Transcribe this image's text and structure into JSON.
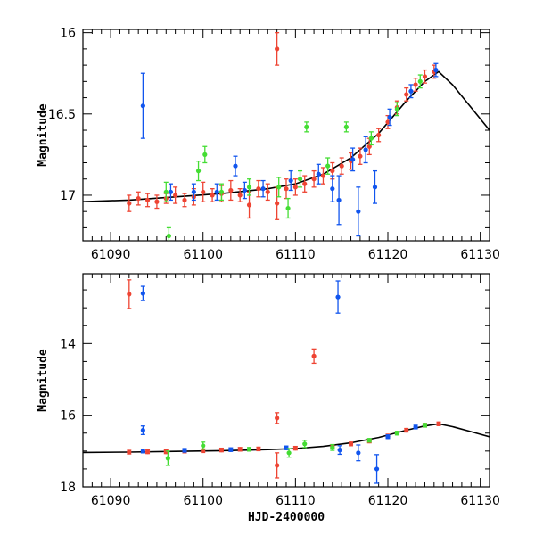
{
  "colors": {
    "red": "#ee4433",
    "blue": "#1155ee",
    "green": "#44dd33",
    "model": "#000000"
  },
  "chart_data": [
    {
      "type": "scatter",
      "ylabel": "Magnitude",
      "xlabel": "",
      "xlim": [
        61087,
        61131
      ],
      "ylim": [
        17.28,
        15.98
      ],
      "x_ticks": [
        61090,
        61100,
        61110,
        61120,
        61130
      ],
      "y_ticks": [
        16,
        16.5,
        17
      ],
      "y_tick_labels": [
        "16",
        "16.5",
        "17"
      ],
      "model_curve": [
        [
          61087,
          17.04
        ],
        [
          61092,
          17.03
        ],
        [
          61097,
          17.01
        ],
        [
          61102,
          16.99
        ],
        [
          61107,
          16.96
        ],
        [
          61110,
          16.93
        ],
        [
          61113,
          16.87
        ],
        [
          61116,
          16.77
        ],
        [
          61119,
          16.62
        ],
        [
          61122,
          16.42
        ],
        [
          61124,
          16.3
        ],
        [
          61125.5,
          16.24
        ],
        [
          61127,
          16.32
        ],
        [
          61129,
          16.46
        ],
        [
          61131,
          16.6
        ]
      ],
      "series": [
        {
          "name": "red",
          "points": [
            [
              61092,
              17.05,
              0.05
            ],
            [
              61093,
              17.02,
              0.04
            ],
            [
              61094,
              17.03,
              0.04
            ],
            [
              61095,
              17.04,
              0.04
            ],
            [
              61096,
              17.02,
              0.03
            ],
            [
              61097,
              17.0,
              0.05
            ],
            [
              61098,
              17.03,
              0.04
            ],
            [
              61099,
              17.01,
              0.05
            ],
            [
              61100,
              16.98,
              0.06
            ],
            [
              61101,
              17.0,
              0.04
            ],
            [
              61102,
              16.99,
              0.05
            ],
            [
              61103,
              16.97,
              0.06
            ],
            [
              61104,
              17.0,
              0.04
            ],
            [
              61105,
              17.06,
              0.08
            ],
            [
              61106,
              16.96,
              0.05
            ],
            [
              61107,
              16.98,
              0.05
            ],
            [
              61108,
              16.1,
              0.1
            ],
            [
              61108,
              17.05,
              0.1
            ],
            [
              61109,
              16.96,
              0.06
            ],
            [
              61110,
              16.95,
              0.05
            ],
            [
              61111,
              16.93,
              0.05
            ],
            [
              61112,
              16.9,
              0.05
            ],
            [
              61113,
              16.88,
              0.05
            ],
            [
              61114,
              16.85,
              0.05
            ],
            [
              61115,
              16.82,
              0.05
            ],
            [
              61116,
              16.79,
              0.05
            ],
            [
              61117,
              16.76,
              0.05
            ],
            [
              61118,
              16.7,
              0.05
            ],
            [
              61119,
              16.63,
              0.04
            ],
            [
              61120,
              16.55,
              0.04
            ],
            [
              61121,
              16.46,
              0.04
            ],
            [
              61122,
              16.38,
              0.04
            ],
            [
              61123,
              16.32,
              0.04
            ],
            [
              61124,
              16.27,
              0.04
            ],
            [
              61125,
              16.24,
              0.04
            ]
          ]
        },
        {
          "name": "blue",
          "points": [
            [
              61093.5,
              16.45,
              0.2
            ],
            [
              61096.5,
              16.98,
              0.05
            ],
            [
              61099,
              16.98,
              0.05
            ],
            [
              61101.5,
              16.98,
              0.05
            ],
            [
              61103.5,
              16.82,
              0.06
            ],
            [
              61104.5,
              16.97,
              0.05
            ],
            [
              61106.5,
              16.96,
              0.05
            ],
            [
              61109.5,
              16.91,
              0.06
            ],
            [
              61112.5,
              16.87,
              0.06
            ],
            [
              61114,
              16.96,
              0.08
            ],
            [
              61114.7,
              17.03,
              0.15
            ],
            [
              61116.2,
              16.78,
              0.07
            ],
            [
              61116.8,
              17.1,
              0.15
            ],
            [
              61117.6,
              16.72,
              0.08
            ],
            [
              61118.6,
              16.95,
              0.1
            ],
            [
              61120.2,
              16.52,
              0.05
            ],
            [
              61122.5,
              16.36,
              0.04
            ],
            [
              61125.2,
              16.23,
              0.04
            ]
          ]
        },
        {
          "name": "green",
          "points": [
            [
              61096,
              16.98,
              0.06
            ],
            [
              61096.3,
              17.25,
              0.05
            ],
            [
              61099.5,
              16.85,
              0.06
            ],
            [
              61100.2,
              16.75,
              0.05
            ],
            [
              61102,
              16.98,
              0.05
            ],
            [
              61105,
              16.95,
              0.05
            ],
            [
              61108.2,
              16.95,
              0.06
            ],
            [
              61109.2,
              17.08,
              0.06
            ],
            [
              61110.5,
              16.9,
              0.05
            ],
            [
              61111.2,
              16.58,
              0.03
            ],
            [
              61113.5,
              16.82,
              0.05
            ],
            [
              61115.5,
              16.58,
              0.03
            ],
            [
              61118.2,
              16.65,
              0.04
            ],
            [
              61121,
              16.47,
              0.04
            ],
            [
              61123.5,
              16.3,
              0.04
            ]
          ]
        }
      ]
    },
    {
      "type": "scatter",
      "ylabel": "Magnitude",
      "xlabel": "HJD-2400000",
      "xlim": [
        61087,
        61131
      ],
      "ylim": [
        18.0,
        12.05
      ],
      "x_ticks": [
        61090,
        61100,
        61110,
        61120,
        61130
      ],
      "y_ticks": [
        14,
        16,
        18
      ],
      "y_tick_labels": [
        "14",
        "16",
        "18"
      ],
      "model_curve": [
        [
          61087,
          17.04
        ],
        [
          61092,
          17.03
        ],
        [
          61097,
          17.01
        ],
        [
          61102,
          16.99
        ],
        [
          61107,
          16.96
        ],
        [
          61110,
          16.93
        ],
        [
          61113,
          16.87
        ],
        [
          61116,
          16.77
        ],
        [
          61119,
          16.62
        ],
        [
          61122,
          16.42
        ],
        [
          61124,
          16.3
        ],
        [
          61125.5,
          16.24
        ],
        [
          61127,
          16.32
        ],
        [
          61129,
          16.46
        ],
        [
          61131,
          16.6
        ]
      ],
      "series": [
        {
          "name": "red",
          "points": [
            [
              61092,
              12.62,
              0.4
            ],
            [
              61092,
              17.03,
              0.05
            ],
            [
              61094,
              17.02,
              0.05
            ],
            [
              61096,
              17.02,
              0.05
            ],
            [
              61098,
              17.0,
              0.05
            ],
            [
              61100,
              16.99,
              0.05
            ],
            [
              61102,
              16.97,
              0.05
            ],
            [
              61104,
              16.95,
              0.05
            ],
            [
              61106,
              16.94,
              0.05
            ],
            [
              61108,
              16.08,
              0.15
            ],
            [
              61108,
              17.4,
              0.35
            ],
            [
              61110,
              16.92,
              0.05
            ],
            [
              61112,
              14.35,
              0.2
            ],
            [
              61114,
              16.87,
              0.05
            ],
            [
              61116,
              16.8,
              0.05
            ],
            [
              61118,
              16.72,
              0.05
            ],
            [
              61120,
              16.58,
              0.05
            ],
            [
              61122,
              16.42,
              0.05
            ],
            [
              61124,
              16.28,
              0.05
            ],
            [
              61125.5,
              16.24,
              0.05
            ]
          ]
        },
        {
          "name": "blue",
          "points": [
            [
              61093.5,
              12.6,
              0.2
            ],
            [
              61093.5,
              16.42,
              0.12
            ],
            [
              61093.5,
              17.0,
              0.05
            ],
            [
              61098,
              16.98,
              0.05
            ],
            [
              61103,
              16.96,
              0.05
            ],
            [
              61109,
              16.91,
              0.05
            ],
            [
              61114.6,
              12.7,
              0.45
            ],
            [
              61114.8,
              16.97,
              0.12
            ],
            [
              61116.8,
              17.05,
              0.22
            ],
            [
              61118.8,
              17.5,
              0.4
            ],
            [
              61120,
              16.6,
              0.05
            ],
            [
              61123,
              16.33,
              0.05
            ]
          ]
        },
        {
          "name": "green",
          "points": [
            [
              61096.2,
              17.2,
              0.2
            ],
            [
              61100,
              16.85,
              0.1
            ],
            [
              61105,
              16.95,
              0.05
            ],
            [
              61109.3,
              17.05,
              0.12
            ],
            [
              61111,
              16.8,
              0.1
            ],
            [
              61114,
              16.9,
              0.08
            ],
            [
              61118,
              16.7,
              0.05
            ],
            [
              61121,
              16.5,
              0.05
            ],
            [
              61124,
              16.28,
              0.05
            ]
          ]
        }
      ]
    }
  ]
}
